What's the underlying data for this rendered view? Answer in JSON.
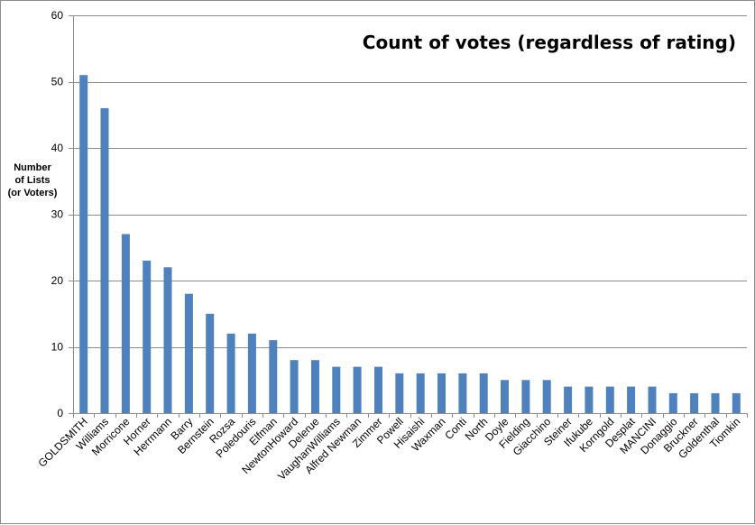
{
  "chart_data": {
    "type": "bar",
    "title": "Count of votes (regardless of rating)",
    "ylabel": [
      "Number",
      "of Lists",
      "(or Voters)"
    ],
    "xlabel": "",
    "ylim": [
      0,
      60
    ],
    "yticks": [
      0,
      10,
      20,
      30,
      40,
      50,
      60
    ],
    "grid": true,
    "legend": "none",
    "bar_color": "#4f81bd",
    "grid_color": "#8c8c8c",
    "categories": [
      "GOLDSMITH",
      "Williams",
      "Morricone",
      "Horner",
      "Herrmann",
      "Barry",
      "Bernstein",
      "Rozsa",
      "Poledouris",
      "Elfman",
      "NewtonHoward",
      "Delerue",
      "VaughanWilliams",
      "Alfred Newman",
      "Zimmer",
      "Powell",
      "Hisaishi",
      "Waxman",
      "Conti",
      "North",
      "Doyle",
      "Fielding",
      "Giacchino",
      "Steiner",
      "Ifukube",
      "Korngold",
      "Desplat",
      "MANCINI",
      "Donaggio",
      "Bruckner",
      "Goldenthal",
      "Tiomkin"
    ],
    "values": [
      51,
      46,
      27,
      23,
      22,
      18,
      15,
      12,
      12,
      11,
      8,
      8,
      7,
      7,
      7,
      6,
      6,
      6,
      6,
      6,
      5,
      5,
      5,
      4,
      4,
      4,
      4,
      4,
      3,
      3,
      3,
      3
    ]
  }
}
